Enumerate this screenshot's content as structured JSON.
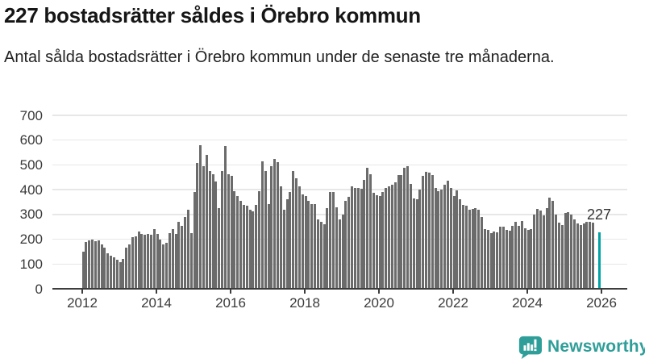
{
  "header": {
    "title": "227 bostadsrätter såldes i Örebro kommun",
    "subtitle": "Antal sålda bostadsrätter i Örebro kommun under de senaste tre månaderna."
  },
  "chart_data": {
    "type": "bar",
    "title": "227 bostadsrätter såldes i Örebro kommun",
    "subtitle": "Antal sålda bostadsrätter i Örebro kommun under de senaste tre månaderna",
    "x_start": "2012-01",
    "frequency": "monthly-rolling-3-month-sum",
    "xlabel": "",
    "ylabel": "",
    "ylim": [
      0,
      700
    ],
    "yticks": [
      0,
      100,
      200,
      300,
      400,
      500,
      600,
      700
    ],
    "xticks": [
      "2012",
      "2014",
      "2016",
      "2018",
      "2020",
      "2022",
      "2024",
      "2026"
    ],
    "grid": "horizontal",
    "legend": "none",
    "bar_color": "#6b6b6b",
    "highlight_color": "#00a2a6",
    "annotation": {
      "label": "227",
      "value": 227
    },
    "values": [
      150,
      190,
      197,
      200,
      192,
      196,
      180,
      166,
      143,
      133,
      126,
      117,
      109,
      120,
      166,
      180,
      209,
      212,
      230,
      222,
      218,
      220,
      218,
      242,
      220,
      200,
      180,
      186,
      226,
      240,
      222,
      269,
      255,
      290,
      320,
      224,
      390,
      507,
      580,
      494,
      541,
      476,
      463,
      432,
      327,
      476,
      575,
      462,
      455,
      395,
      373,
      356,
      340,
      335,
      318,
      313,
      340,
      395,
      515,
      474,
      343,
      496,
      525,
      512,
      415,
      320,
      362,
      390,
      476,
      447,
      414,
      381,
      374,
      354,
      341,
      343,
      280,
      269,
      261,
      327,
      392,
      392,
      330,
      280,
      300,
      354,
      370,
      414,
      406,
      408,
      403,
      441,
      487,
      463,
      387,
      378,
      374,
      390,
      406,
      415,
      420,
      430,
      460,
      458,
      487,
      495,
      422,
      364,
      362,
      402,
      455,
      473,
      468,
      460,
      408,
      395,
      400,
      419,
      438,
      406,
      373,
      397,
      362,
      340,
      335,
      318,
      324,
      327,
      320,
      291,
      242,
      237,
      226,
      231,
      229,
      251,
      250,
      237,
      234,
      253,
      269,
      255,
      273,
      244,
      237,
      242,
      300,
      324,
      316,
      295,
      325,
      367,
      355,
      300,
      268,
      258,
      305,
      308,
      299,
      280,
      265,
      256,
      265,
      272,
      269,
      268,
      null,
      227
    ]
  },
  "footer": {
    "brand": "Newsworthy",
    "brand_color": "#2f9e99",
    "icon": "newsworthy-chart-bubble"
  }
}
